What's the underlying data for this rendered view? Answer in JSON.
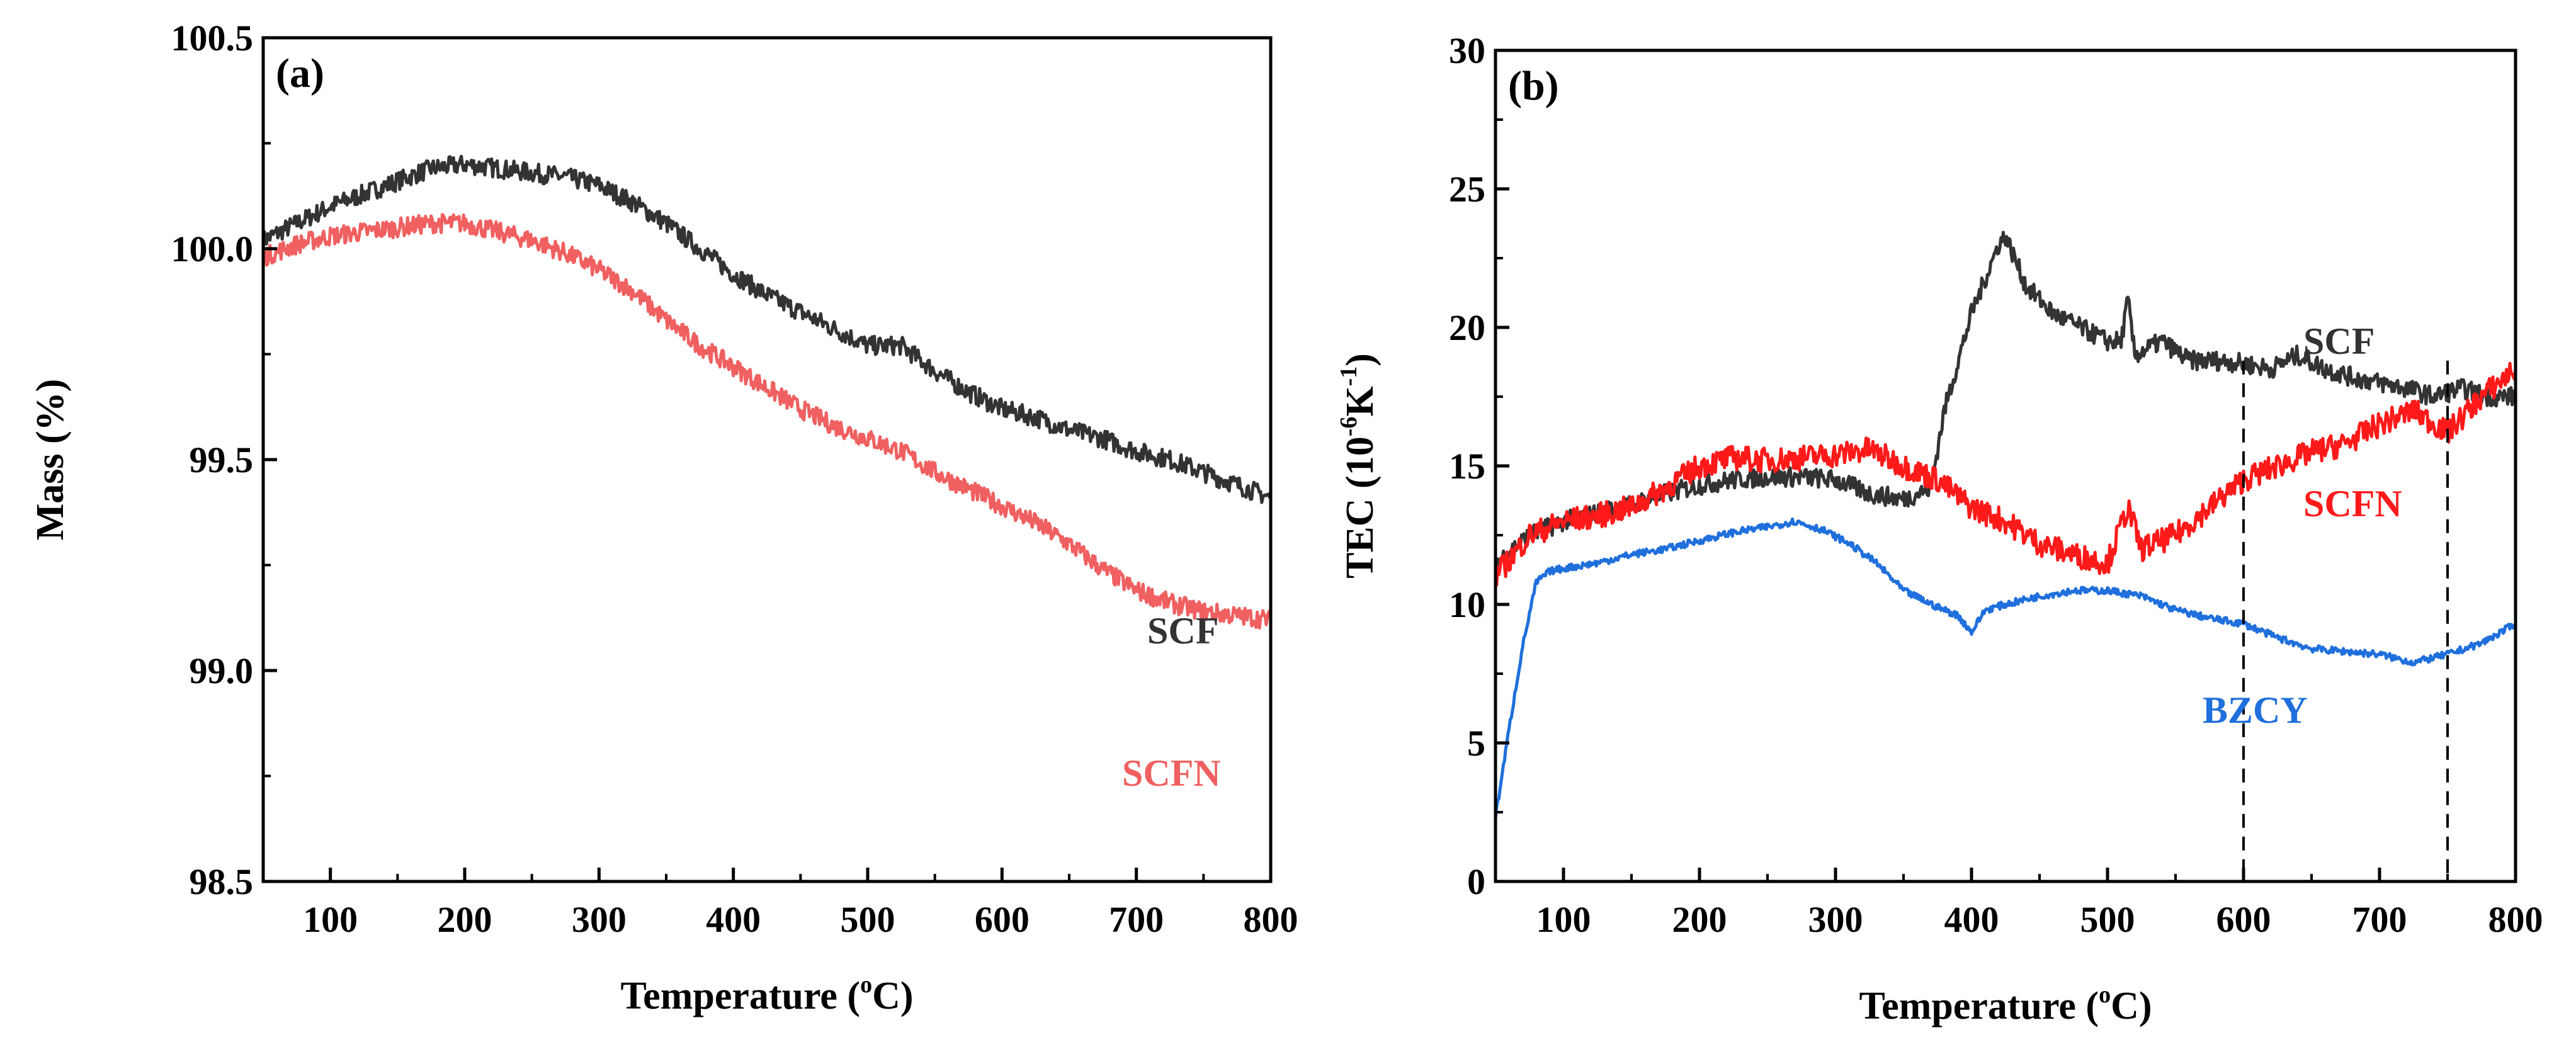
{
  "figure": {
    "panel_a_label": "(a)",
    "panel_b_label": "(b)",
    "xlabel_prefix": "Temperature (",
    "xlabel_sup": "o",
    "xlabel_suffix": "C)",
    "a_ylabel": "Mass (%)",
    "b_ylabel_prefix": "TEC (10",
    "b_ylabel_sup1": "-6",
    "b_ylabel_mid": "K",
    "b_ylabel_sup2": "-1",
    "b_ylabel_suffix": ")"
  },
  "chart_data": [
    {
      "type": "line",
      "panel": "(a)",
      "title": "",
      "xlabel": "Temperature (oC)",
      "ylabel": "Mass (%)",
      "xlim": [
        50,
        800
      ],
      "ylim": [
        98.5,
        100.5
      ],
      "x_ticks": [
        100,
        200,
        300,
        400,
        500,
        600,
        700,
        800
      ],
      "x_tick_labels": [
        "100",
        "200",
        "300",
        "400",
        "500",
        "600",
        "700",
        "800"
      ],
      "y_ticks": [
        98.5,
        99.0,
        99.5,
        100.0,
        100.5
      ],
      "y_tick_labels": [
        "98.5",
        "99.0",
        "99.5",
        "100.0",
        "100.5"
      ],
      "series": [
        {
          "name": "SCF",
          "color": "#333333",
          "x": [
            50,
            75,
            100,
            125,
            150,
            175,
            200,
            225,
            250,
            275,
            300,
            325,
            350,
            375,
            400,
            425,
            450,
            475,
            500,
            525,
            550,
            575,
            600,
            625,
            650,
            675,
            700,
            725,
            750,
            775,
            800
          ],
          "y": [
            100.02,
            100.06,
            100.1,
            100.13,
            100.16,
            100.19,
            100.2,
            100.19,
            100.18,
            100.17,
            100.15,
            100.11,
            100.06,
            100.0,
            99.94,
            99.89,
            99.85,
            99.81,
            99.77,
            99.77,
            99.71,
            99.66,
            99.62,
            99.6,
            99.57,
            99.55,
            99.52,
            99.5,
            99.47,
            99.44,
            99.41
          ]
        },
        {
          "name": "SCFN",
          "color": "#f06060",
          "x": [
            50,
            75,
            100,
            125,
            150,
            175,
            200,
            225,
            250,
            275,
            300,
            325,
            350,
            375,
            400,
            425,
            450,
            475,
            500,
            525,
            550,
            575,
            600,
            625,
            650,
            675,
            700,
            725,
            750,
            775,
            800
          ],
          "y": [
            99.98,
            100.01,
            100.03,
            100.04,
            100.05,
            100.06,
            100.06,
            100.04,
            100.02,
            99.99,
            99.95,
            99.9,
            99.83,
            99.77,
            99.72,
            99.67,
            99.62,
            99.58,
            99.55,
            99.52,
            99.47,
            99.43,
            99.39,
            99.35,
            99.3,
            99.24,
            99.19,
            99.16,
            99.14,
            99.13,
            99.12
          ]
        }
      ],
      "annotations": [
        "SCF",
        "SCFN"
      ]
    },
    {
      "type": "line",
      "panel": "(b)",
      "title": "",
      "xlabel": "Temperature (oC)",
      "ylabel": "TEC (10-6K-1)",
      "xlim": [
        50,
        800
      ],
      "ylim": [
        0,
        30
      ],
      "x_ticks": [
        100,
        200,
        300,
        400,
        500,
        600,
        700,
        800
      ],
      "x_tick_labels": [
        "100",
        "200",
        "300",
        "400",
        "500",
        "600",
        "700",
        "800"
      ],
      "y_ticks": [
        0,
        5,
        10,
        15,
        20,
        25,
        30
      ],
      "y_tick_labels": [
        "0",
        "5",
        "10",
        "15",
        "20",
        "25",
        "30"
      ],
      "vlines": [
        600,
        750
      ],
      "series": [
        {
          "name": "SCF",
          "color": "#333333",
          "x": [
            50,
            75,
            100,
            125,
            150,
            175,
            200,
            225,
            250,
            275,
            300,
            325,
            350,
            370,
            380,
            400,
            420,
            425,
            440,
            460,
            480,
            500,
            510,
            515,
            520,
            540,
            560,
            580,
            600,
            620,
            640,
            660,
            680,
            700,
            720,
            740,
            760,
            780,
            800
          ],
          "y": [
            11.5,
            12.5,
            13.0,
            13.3,
            13.6,
            14.0,
            14.3,
            14.5,
            14.6,
            14.6,
            14.5,
            14.0,
            13.8,
            14.2,
            17.0,
            20.5,
            23.0,
            23.3,
            21.5,
            20.5,
            20.0,
            19.5,
            19.5,
            21.0,
            19.0,
            19.5,
            18.8,
            18.8,
            18.7,
            18.5,
            19.0,
            18.5,
            18.2,
            18.0,
            17.8,
            17.5,
            17.8,
            17.5,
            17.5
          ]
        },
        {
          "name": "SCFN",
          "color": "#ff1a1a",
          "x": [
            50,
            75,
            100,
            125,
            150,
            175,
            200,
            225,
            250,
            275,
            300,
            325,
            350,
            375,
            400,
            425,
            450,
            475,
            500,
            515,
            525,
            550,
            575,
            600,
            625,
            650,
            675,
            700,
            725,
            750,
            775,
            800
          ],
          "y": [
            11.0,
            12.5,
            13.0,
            13.2,
            13.5,
            14.2,
            15.0,
            15.3,
            15.2,
            15.3,
            15.4,
            15.6,
            15.0,
            14.5,
            13.5,
            13.0,
            12.2,
            11.8,
            11.5,
            13.5,
            12.0,
            12.5,
            13.5,
            14.5,
            15.0,
            15.5,
            15.8,
            16.5,
            17.0,
            16.2,
            17.5,
            18.5
          ]
        },
        {
          "name": "BZCY",
          "color": "#1f6fdc",
          "x": [
            50,
            60,
            70,
            80,
            90,
            100,
            125,
            150,
            175,
            200,
            225,
            250,
            270,
            290,
            310,
            330,
            350,
            375,
            390,
            400,
            410,
            425,
            450,
            475,
            500,
            525,
            550,
            575,
            600,
            625,
            650,
            675,
            700,
            725,
            750,
            775,
            800
          ],
          "y": [
            2.3,
            5.5,
            8.5,
            10.8,
            11.2,
            11.3,
            11.5,
            11.8,
            12.0,
            12.3,
            12.6,
            12.8,
            13.0,
            12.7,
            12.2,
            11.5,
            10.5,
            9.9,
            9.6,
            9.0,
            9.8,
            10.0,
            10.3,
            10.5,
            10.5,
            10.3,
            9.8,
            9.5,
            9.3,
            8.8,
            8.4,
            8.3,
            8.2,
            7.9,
            8.2,
            8.6,
            9.3
          ]
        }
      ],
      "annotations": [
        "SCF",
        "SCFN",
        "BZCY"
      ]
    }
  ]
}
